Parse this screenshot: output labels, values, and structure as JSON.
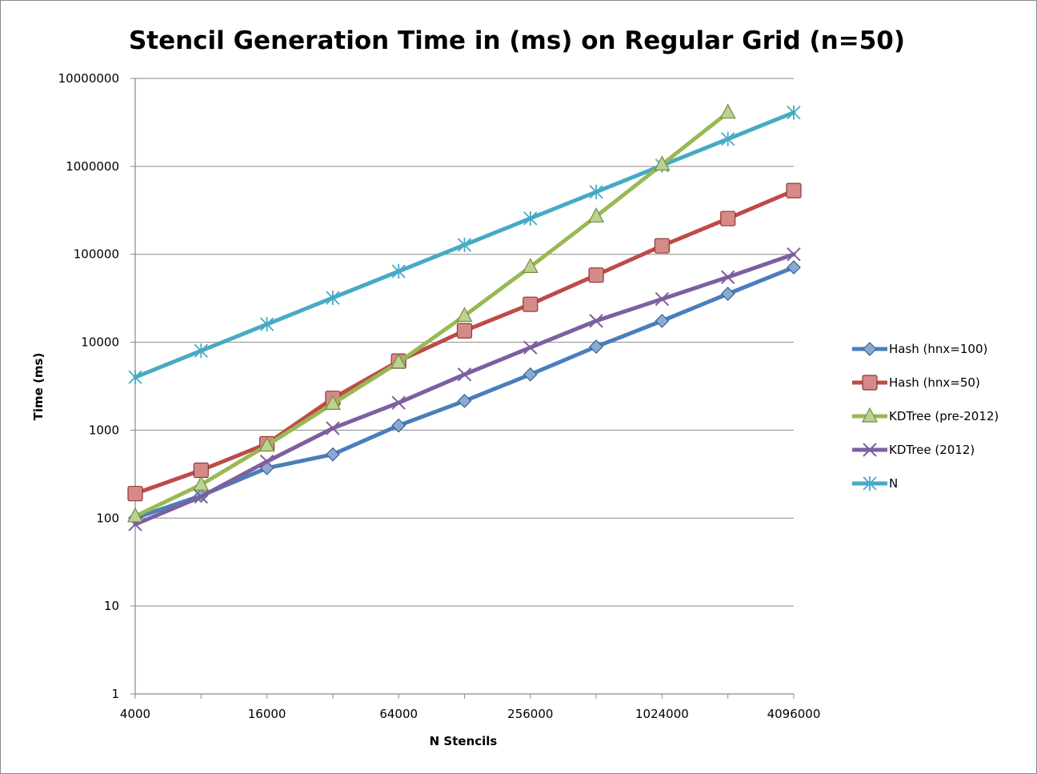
{
  "chart_data": {
    "type": "line",
    "title": "Stencil Generation Time in (ms) on Regular Grid (n=50)",
    "xlabel": "N Stencils",
    "ylabel": "Time (ms)",
    "x_scale": "log2",
    "y_scale": "log10",
    "xlim": [
      4000,
      4096000
    ],
    "ylim": [
      1,
      10000000
    ],
    "grid": "horizontal",
    "legend_position": "right",
    "x_tick_labels": [
      "4000",
      "16000",
      "64000",
      "256000",
      "1024000",
      "4096000"
    ],
    "x_tick_values": [
      4000,
      16000,
      64000,
      256000,
      1024000,
      4096000
    ],
    "y_tick_labels": [
      "1",
      "10",
      "100",
      "1000",
      "10000",
      "100000",
      "1000000",
      "10000000"
    ],
    "y_tick_values": [
      1,
      10,
      100,
      1000,
      10000,
      100000,
      1000000,
      10000000
    ],
    "x": [
      4000,
      8000,
      16000,
      32000,
      64000,
      128000,
      256000,
      512000,
      1024000,
      2048000,
      4096000
    ],
    "series": [
      {
        "name": "Hash (hnx=100)",
        "color": "#4a7ebb",
        "marker": "diamond",
        "values": [
          100,
          180,
          370,
          530,
          1130,
          2150,
          4300,
          8900,
          17500,
          35500,
          71000
        ]
      },
      {
        "name": "Hash (hnx=50)",
        "color": "#be4b48",
        "marker": "square",
        "values": [
          190,
          350,
          700,
          2300,
          6100,
          13500,
          27000,
          58000,
          125000,
          255000,
          530000
        ]
      },
      {
        "name": "KDTree (pre-2012)",
        "color": "#98b954",
        "marker": "triangle",
        "values": [
          105,
          240,
          670,
          2000,
          5900,
          20000,
          72000,
          270000,
          1050000,
          4100000,
          null
        ]
      },
      {
        "name": "KDTree (2012)",
        "color": "#7d5fa0",
        "marker": "x",
        "values": [
          85,
          175,
          440,
          1050,
          2050,
          4300,
          8700,
          17500,
          31000,
          55000,
          100000
        ]
      },
      {
        "name": "N",
        "color": "#46aac5",
        "marker": "star",
        "values": [
          4000,
          8000,
          16000,
          32000,
          64000,
          128000,
          256000,
          512000,
          1024000,
          2048000,
          4096000
        ]
      }
    ]
  }
}
